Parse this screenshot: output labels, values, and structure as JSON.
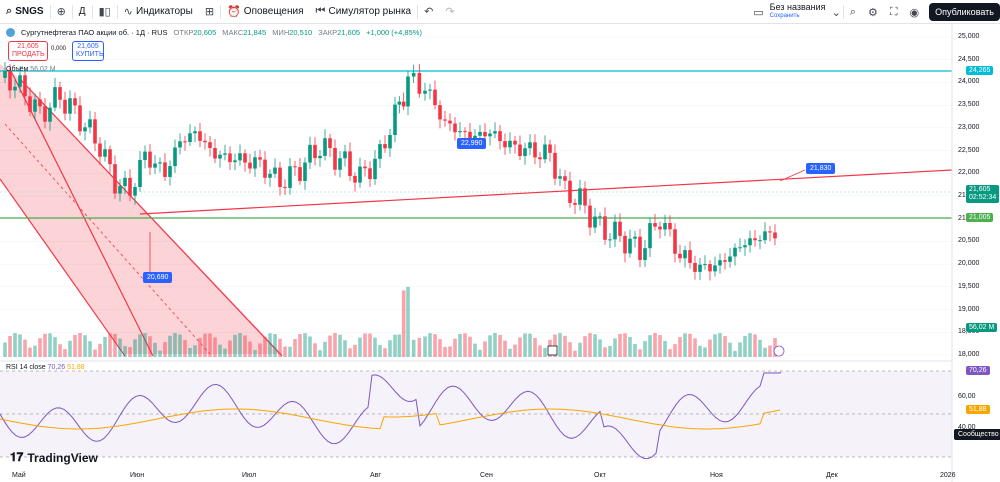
{
  "toolbar": {
    "symbol": "SNGS",
    "interval": "Д",
    "indicators_label": "Индикаторы",
    "alerts_label": "Оповещения",
    "simulator_label": "Симулятор рынка",
    "layout_name": "Без названия",
    "layout_saved": "Сохранить",
    "publish_label": "Опубликовать"
  },
  "legend": {
    "title": "Сургутнефтегаз ПАО акции об. · 1Д · RUS",
    "open_label": "ОТКР",
    "open": "20,605",
    "high_label": "МАКС",
    "high": "21,845",
    "low_label": "МИН",
    "low": "20,510",
    "close_label": "ЗАКР",
    "close": "21,605",
    "change": "+1,000 (+4,85%)"
  },
  "trade": {
    "sell_price": "21,605",
    "sell_label": "ПРОДАТЬ",
    "spread": "0,000",
    "buy_price": "21,605",
    "buy_label": "КУПИТЬ"
  },
  "volume_legend": {
    "label": "Объём",
    "value": "56,02 M"
  },
  "rsi_legend": {
    "label": "RSI 14 close",
    "rsi": "70,26",
    "ma": "51,88"
  },
  "brand": "TradingView",
  "x_axis": [
    "Май",
    "Июн",
    "Июл",
    "Авг",
    "Сен",
    "Окт",
    "Ноя",
    "Дек",
    "2026"
  ],
  "price_axis": [
    "25,000",
    "24,500",
    "24,000",
    "23,500",
    "23,000",
    "22,500",
    "22,000",
    "21,500",
    "21,000",
    "20,500",
    "20,000",
    "19,500",
    "19,000",
    "18,500",
    "18,000"
  ],
  "rsi_axis": [
    "60,00",
    "40,00"
  ],
  "badges": {
    "resistance": "24,265",
    "price": "21,605",
    "countdown": "02:52:34",
    "support": "21,005",
    "volume": "56,02 M",
    "rsi": "70,26",
    "rsi_ma": "51,88"
  },
  "callouts": {
    "c1": "22,990",
    "c2": "21,830",
    "c3": "20,690"
  },
  "events_label": "Сообщество",
  "colors": {
    "up": "#089981",
    "down": "#f23645",
    "rsi": "#7e57c2",
    "rsi_ma": "#f7a600",
    "accent": "#2962ff"
  },
  "chart_data": {
    "type": "candlestick",
    "ohlc_points": [
      [
        20.6,
        21.85,
        20.51,
        21.605
      ]
    ],
    "horizontal_lines": [
      24.265,
      21.005
    ],
    "rsi_last": 70.26,
    "rsi_ma_last": 51.88
  }
}
